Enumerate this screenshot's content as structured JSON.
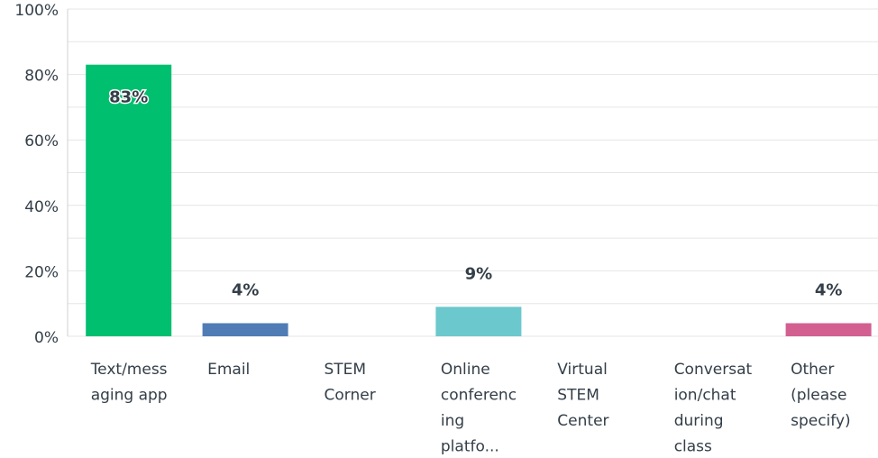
{
  "chart_data": {
    "type": "bar",
    "categories": [
      [
        "Text/mess",
        "aging app"
      ],
      [
        "Email"
      ],
      [
        "STEM",
        "Corner"
      ],
      [
        "Online",
        "conferenc",
        "ing",
        "platfo..."
      ],
      [
        "Virtual",
        "STEM",
        "Center"
      ],
      [
        "Conversat",
        "ion/chat",
        "during",
        "class"
      ],
      [
        "Other",
        "(please",
        "specify)"
      ]
    ],
    "values": [
      83,
      4,
      0,
      9,
      0,
      0,
      4
    ],
    "value_labels": [
      "83%",
      "4%",
      null,
      "9%",
      null,
      null,
      "4%"
    ],
    "colors": [
      "#00bf6f",
      "#507cb6",
      "#f9be00",
      "#6bc8cd",
      "#7f7fc0",
      "#f05b24",
      "#d25f90"
    ],
    "ylim": [
      0,
      100
    ],
    "yticks": [
      {
        "value": 0,
        "label": "0%"
      },
      {
        "value": 20,
        "label": "20%"
      },
      {
        "value": 40,
        "label": "40%"
      },
      {
        "value": 60,
        "label": "60%"
      },
      {
        "value": 80,
        "label": "80%"
      },
      {
        "value": 100,
        "label": "100%"
      }
    ],
    "minor_grid": [
      10,
      30,
      50,
      70,
      90
    ],
    "grid": true
  }
}
